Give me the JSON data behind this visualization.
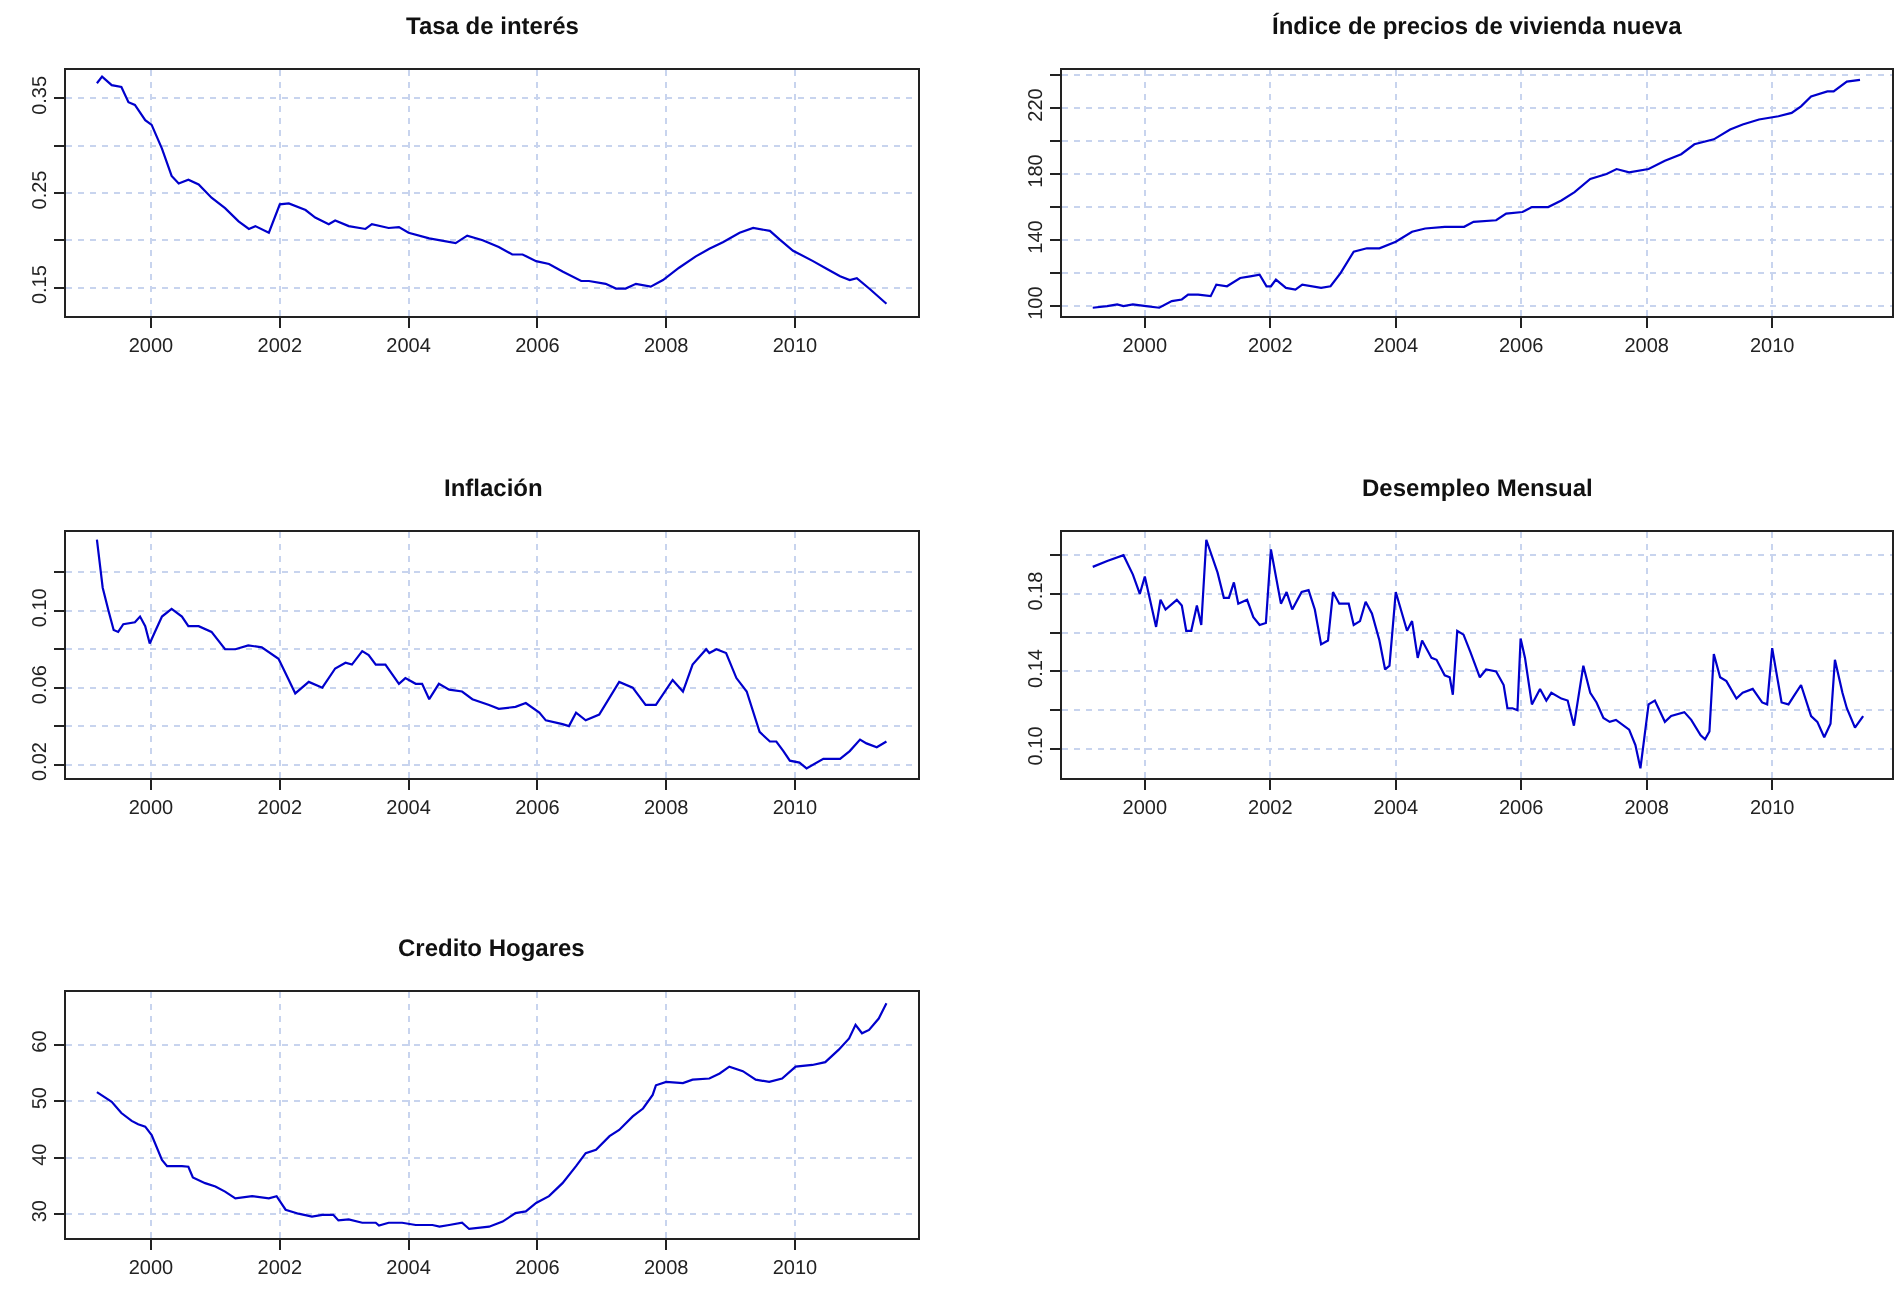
{
  "chart_data": [
    {
      "type": "line",
      "title": "Tasa de interés",
      "color": "#0000cc",
      "grid": true,
      "xlim": [
        1998.68,
        2011.91
      ],
      "xticks": [
        2000,
        2002,
        2004,
        2006,
        2008,
        2010
      ],
      "ylim": [
        0.12,
        0.38
      ],
      "yticks": [
        0.15,
        {
          "value": 0.2,
          "label": null
        },
        0.25,
        {
          "value": 0.3,
          "label": null
        },
        0.35
      ],
      "x": [
        1999.16,
        1999.24,
        1999.39,
        1999.54,
        1999.65,
        1999.75,
        1999.91,
        2000.01,
        2000.17,
        2000.32,
        2000.43,
        2000.58,
        2000.74,
        2000.94,
        2001.15,
        2001.36,
        2001.52,
        2001.62,
        2001.83,
        2002.0,
        2002.14,
        2002.4,
        2002.55,
        2002.76,
        2002.86,
        2003.07,
        2003.33,
        2003.43,
        2003.69,
        2003.85,
        2004.0,
        2004.32,
        2004.73,
        2004.91,
        2005.15,
        2005.4,
        2005.61,
        2005.77,
        2005.98,
        2006.18,
        2006.39,
        2006.68,
        2006.8,
        2007.06,
        2007.22,
        2007.37,
        2007.53,
        2007.76,
        2007.95,
        2008.2,
        2008.46,
        2008.67,
        2008.88,
        2009.14,
        2009.35,
        2009.61,
        2009.76,
        2009.97,
        2010.28,
        2010.49,
        2010.7,
        2010.85,
        2010.96,
        2011.17,
        2011.42
      ],
      "values": [
        0.366,
        0.373,
        0.364,
        0.362,
        0.346,
        0.343,
        0.327,
        0.322,
        0.297,
        0.268,
        0.26,
        0.264,
        0.259,
        0.245,
        0.234,
        0.22,
        0.212,
        0.215,
        0.208,
        0.238,
        0.239,
        0.232,
        0.224,
        0.217,
        0.221,
        0.215,
        0.212,
        0.217,
        0.213,
        0.214,
        0.208,
        0.202,
        0.197,
        0.205,
        0.2,
        0.193,
        0.185,
        0.185,
        0.178,
        0.175,
        0.167,
        0.157,
        0.157,
        0.154,
        0.149,
        0.149,
        0.154,
        0.151,
        0.158,
        0.171,
        0.183,
        0.191,
        0.198,
        0.208,
        0.213,
        0.21,
        0.201,
        0.189,
        0.178,
        0.17,
        0.162,
        0.158,
        0.16,
        0.148,
        0.133
      ]
    },
    {
      "type": "line",
      "title": "Índice de precios de vivienda nueva",
      "color": "#0000cc",
      "grid": true,
      "xlim": [
        1998.68,
        2011.91
      ],
      "xticks": [
        2000,
        2002,
        2004,
        2006,
        2008,
        2010
      ],
      "ylim": [
        94,
        243
      ],
      "yticks": [
        100,
        {
          "value": 120,
          "label": null
        },
        140,
        {
          "value": 160,
          "label": null
        },
        180,
        {
          "value": 200,
          "label": null
        },
        220,
        {
          "value": 240,
          "label": null
        }
      ],
      "x": [
        1999.17,
        1999.4,
        1999.56,
        1999.66,
        1999.81,
        2000.02,
        2000.23,
        2000.43,
        2000.59,
        2000.69,
        2000.85,
        2001.05,
        2001.14,
        2001.31,
        2001.52,
        2001.68,
        2001.83,
        2001.94,
        2002.01,
        2002.09,
        2002.25,
        2002.4,
        2002.51,
        2002.81,
        2002.96,
        2003.12,
        2003.33,
        2003.54,
        2003.74,
        2004.0,
        2004.26,
        2004.47,
        2004.78,
        2005.09,
        2005.24,
        2005.6,
        2005.76,
        2006.02,
        2006.17,
        2006.43,
        2006.64,
        2006.85,
        2007.1,
        2007.36,
        2007.52,
        2007.72,
        2008.03,
        2008.29,
        2008.55,
        2008.76,
        2009.07,
        2009.33,
        2009.53,
        2009.79,
        2010.1,
        2010.31,
        2010.46,
        2010.62,
        2010.88,
        2010.98,
        2011.19,
        2011.4
      ],
      "values": [
        99,
        100,
        101,
        100,
        101,
        100,
        99,
        103,
        104,
        107,
        107,
        106,
        113,
        112,
        117,
        118,
        119,
        112,
        112,
        116,
        111,
        110,
        113,
        111,
        112,
        120,
        133,
        135,
        135,
        139,
        145,
        147,
        148,
        148,
        151,
        152,
        156,
        157,
        160,
        160,
        164,
        169,
        177,
        180,
        183,
        181,
        183,
        188,
        192,
        198,
        201,
        207,
        210,
        213,
        215,
        217,
        221,
        227,
        230,
        230,
        236,
        237
      ]
    },
    {
      "type": "line",
      "title": "Inflación",
      "color": "#0000cc",
      "grid": true,
      "xlim": [
        1998.68,
        2011.91
      ],
      "xticks": [
        2000,
        2002,
        2004,
        2006,
        2008,
        2010
      ],
      "ylim": [
        0.013,
        0.141
      ],
      "yticks": [
        0.02,
        {
          "value": 0.04,
          "label": null
        },
        0.06,
        {
          "value": 0.08,
          "label": null
        },
        {
          "value": 0.1,
          "label": "0.10"
        },
        {
          "value": 0.12,
          "label": null
        }
      ],
      "x": [
        1999.16,
        1999.25,
        1999.34,
        1999.42,
        1999.49,
        1999.57,
        1999.75,
        1999.83,
        1999.91,
        1999.98,
        2000.06,
        2000.17,
        2000.32,
        2000.48,
        2000.58,
        2000.74,
        2000.94,
        2001.15,
        2001.31,
        2001.51,
        2001.72,
        2001.98,
        2002.14,
        2002.24,
        2002.45,
        2002.66,
        2002.86,
        2003.02,
        2003.12,
        2003.28,
        2003.38,
        2003.49,
        2003.64,
        2003.85,
        2003.95,
        2004.11,
        2004.21,
        2004.32,
        2004.47,
        2004.63,
        2004.83,
        2004.99,
        2005.25,
        2005.4,
        2005.66,
        2005.82,
        2006.03,
        2006.13,
        2006.39,
        2006.49,
        2006.6,
        2006.75,
        2006.96,
        2007.27,
        2007.48,
        2007.68,
        2007.84,
        2008.1,
        2008.26,
        2008.41,
        2008.62,
        2008.67,
        2008.78,
        2008.93,
        2009.09,
        2009.25,
        2009.45,
        2009.61,
        2009.71,
        2009.82,
        2009.92,
        2010.07,
        2010.18,
        2010.44,
        2010.7,
        2010.85,
        2011.01,
        2011.11,
        2011.27,
        2011.42
      ],
      "values": [
        0.137,
        0.112,
        0.1,
        0.09,
        0.089,
        0.093,
        0.094,
        0.097,
        0.092,
        0.083,
        0.089,
        0.097,
        0.101,
        0.097,
        0.092,
        0.092,
        0.089,
        0.08,
        0.08,
        0.082,
        0.081,
        0.075,
        0.064,
        0.057,
        0.063,
        0.06,
        0.07,
        0.073,
        0.072,
        0.079,
        0.077,
        0.072,
        0.072,
        0.062,
        0.065,
        0.062,
        0.062,
        0.054,
        0.062,
        0.059,
        0.058,
        0.054,
        0.051,
        0.049,
        0.05,
        0.052,
        0.047,
        0.043,
        0.041,
        0.04,
        0.047,
        0.043,
        0.046,
        0.063,
        0.06,
        0.051,
        0.051,
        0.064,
        0.058,
        0.072,
        0.08,
        0.078,
        0.08,
        0.078,
        0.065,
        0.058,
        0.037,
        0.032,
        0.032,
        0.027,
        0.022,
        0.021,
        0.018,
        0.023,
        0.023,
        0.027,
        0.033,
        0.031,
        0.029,
        0.032
      ]
    },
    {
      "type": "line",
      "title": "Desempleo Mensual",
      "color": "#0000cc",
      "grid": true,
      "xlim": [
        1998.68,
        2011.91
      ],
      "xticks": [
        2000,
        2002,
        2004,
        2006,
        2008,
        2010
      ],
      "ylim": [
        0.085,
        0.212
      ],
      "yticks": [
        {
          "value": 0.1,
          "label": "0.10"
        },
        {
          "value": 0.12,
          "label": null
        },
        0.14,
        {
          "value": 0.16,
          "label": null
        },
        0.18,
        {
          "value": 0.2,
          "label": null
        }
      ],
      "x": [
        1999.17,
        1999.4,
        1999.66,
        1999.81,
        1999.92,
        2000.0,
        2000.18,
        2000.25,
        2000.33,
        2000.51,
        2000.59,
        2000.66,
        2000.74,
        2000.83,
        2000.9,
        2000.98,
        2001.16,
        2001.26,
        2001.34,
        2001.42,
        2001.49,
        2001.63,
        2001.73,
        2001.83,
        2001.93,
        2002.01,
        2002.17,
        2002.26,
        2002.35,
        2002.5,
        2002.61,
        2002.71,
        2002.81,
        2002.92,
        2003.0,
        2003.1,
        2003.25,
        2003.33,
        2003.43,
        2003.52,
        2003.62,
        2003.74,
        2003.83,
        2003.9,
        2004.0,
        2004.18,
        2004.26,
        2004.35,
        2004.42,
        2004.57,
        2004.65,
        2004.78,
        2004.86,
        2004.91,
        2004.98,
        2005.08,
        2005.19,
        2005.34,
        2005.44,
        2005.6,
        2005.72,
        2005.78,
        2005.86,
        2005.94,
        2005.99,
        2006.06,
        2006.17,
        2006.3,
        2006.4,
        2006.48,
        2006.64,
        2006.74,
        2006.84,
        2006.99,
        2007.1,
        2007.2,
        2007.31,
        2007.41,
        2007.51,
        2007.72,
        2007.82,
        2007.9,
        2008.03,
        2008.13,
        2008.29,
        2008.39,
        2008.6,
        2008.71,
        2008.86,
        2008.93,
        2009.0,
        2009.07,
        2009.17,
        2009.27,
        2009.43,
        2009.53,
        2009.69,
        2009.84,
        2009.92,
        2010.0,
        2010.15,
        2010.26,
        2010.36,
        2010.46,
        2010.62,
        2010.72,
        2010.83,
        2010.93,
        2011.0,
        2011.12,
        2011.19,
        2011.32,
        2011.45
      ],
      "values": [
        0.194,
        0.197,
        0.2,
        0.19,
        0.18,
        0.189,
        0.163,
        0.177,
        0.172,
        0.177,
        0.174,
        0.161,
        0.161,
        0.174,
        0.164,
        0.208,
        0.191,
        0.178,
        0.178,
        0.186,
        0.175,
        0.177,
        0.168,
        0.164,
        0.165,
        0.203,
        0.175,
        0.181,
        0.172,
        0.181,
        0.182,
        0.172,
        0.154,
        0.156,
        0.181,
        0.175,
        0.175,
        0.164,
        0.166,
        0.176,
        0.17,
        0.156,
        0.141,
        0.143,
        0.181,
        0.161,
        0.166,
        0.147,
        0.156,
        0.147,
        0.146,
        0.138,
        0.137,
        0.128,
        0.161,
        0.159,
        0.15,
        0.137,
        0.141,
        0.14,
        0.133,
        0.121,
        0.121,
        0.12,
        0.157,
        0.147,
        0.123,
        0.131,
        0.125,
        0.129,
        0.126,
        0.125,
        0.112,
        0.143,
        0.129,
        0.124,
        0.116,
        0.114,
        0.115,
        0.11,
        0.102,
        0.09,
        0.123,
        0.125,
        0.114,
        0.117,
        0.119,
        0.115,
        0.107,
        0.105,
        0.109,
        0.149,
        0.137,
        0.135,
        0.126,
        0.129,
        0.131,
        0.124,
        0.123,
        0.152,
        0.124,
        0.123,
        0.128,
        0.133,
        0.117,
        0.114,
        0.106,
        0.113,
        0.146,
        0.129,
        0.121,
        0.111,
        0.117
      ]
    },
    {
      "type": "line",
      "title": "Credito Hogares",
      "color": "#0000cc",
      "grid": true,
      "xlim": [
        1998.68,
        2011.91
      ],
      "xticks": [
        2000,
        2002,
        2004,
        2006,
        2008,
        2010
      ],
      "ylim": [
        25.8,
        69.3
      ],
      "yticks": [
        30,
        40,
        50,
        60
      ],
      "x": [
        1999.16,
        1999.39,
        1999.54,
        1999.7,
        1999.8,
        1999.91,
        2000.01,
        2000.17,
        2000.25,
        2000.48,
        2000.58,
        2000.65,
        2000.84,
        2001.0,
        2001.15,
        2001.31,
        2001.57,
        2001.83,
        2001.95,
        2002.09,
        2002.29,
        2002.5,
        2002.66,
        2002.83,
        2002.91,
        2003.07,
        2003.28,
        2003.49,
        2003.54,
        2003.69,
        2003.9,
        2004.11,
        2004.37,
        2004.48,
        2004.63,
        2004.83,
        2004.94,
        2005.25,
        2005.46,
        2005.66,
        2005.82,
        2005.98,
        2006.18,
        2006.39,
        2006.6,
        2006.75,
        2006.91,
        2007.12,
        2007.27,
        2007.48,
        2007.64,
        2007.79,
        2007.84,
        2008.0,
        2008.26,
        2008.41,
        2008.67,
        2008.83,
        2008.98,
        2009.19,
        2009.39,
        2009.6,
        2009.8,
        2010.01,
        2010.27,
        2010.47,
        2010.68,
        2010.84,
        2010.94,
        2011.04,
        2011.15,
        2011.3,
        2011.42
      ],
      "values": [
        51.6,
        49.9,
        47.9,
        46.5,
        45.9,
        45.5,
        44.0,
        39.6,
        38.5,
        38.5,
        38.4,
        36.5,
        35.5,
        34.9,
        34.0,
        32.8,
        33.2,
        32.8,
        33.2,
        30.8,
        30.1,
        29.6,
        29.9,
        29.9,
        28.9,
        29.1,
        28.5,
        28.5,
        28.0,
        28.5,
        28.5,
        28.1,
        28.1,
        27.8,
        28.1,
        28.5,
        27.4,
        27.8,
        28.7,
        30.2,
        30.5,
        32.0,
        33.2,
        35.5,
        38.5,
        40.8,
        41.4,
        43.8,
        44.9,
        47.3,
        48.7,
        51.1,
        52.8,
        53.4,
        53.2,
        53.8,
        54.0,
        54.9,
        56.1,
        55.3,
        53.8,
        53.4,
        54.0,
        56.1,
        56.4,
        56.9,
        59.1,
        61.1,
        63.5,
        62.0,
        62.6,
        64.6,
        67.3
      ]
    }
  ]
}
